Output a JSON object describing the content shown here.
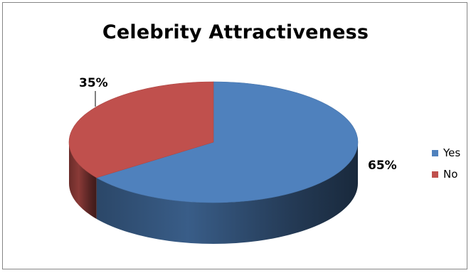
{
  "chart_data": {
    "type": "pie",
    "title": "Celebrity Attractiveness",
    "categories": [
      "Yes",
      "No"
    ],
    "values": [
      65,
      35
    ],
    "data_labels": [
      "65%",
      "35%"
    ],
    "legend_position": "right",
    "colors": [
      "#4F81BD",
      "#C0504D"
    ]
  }
}
